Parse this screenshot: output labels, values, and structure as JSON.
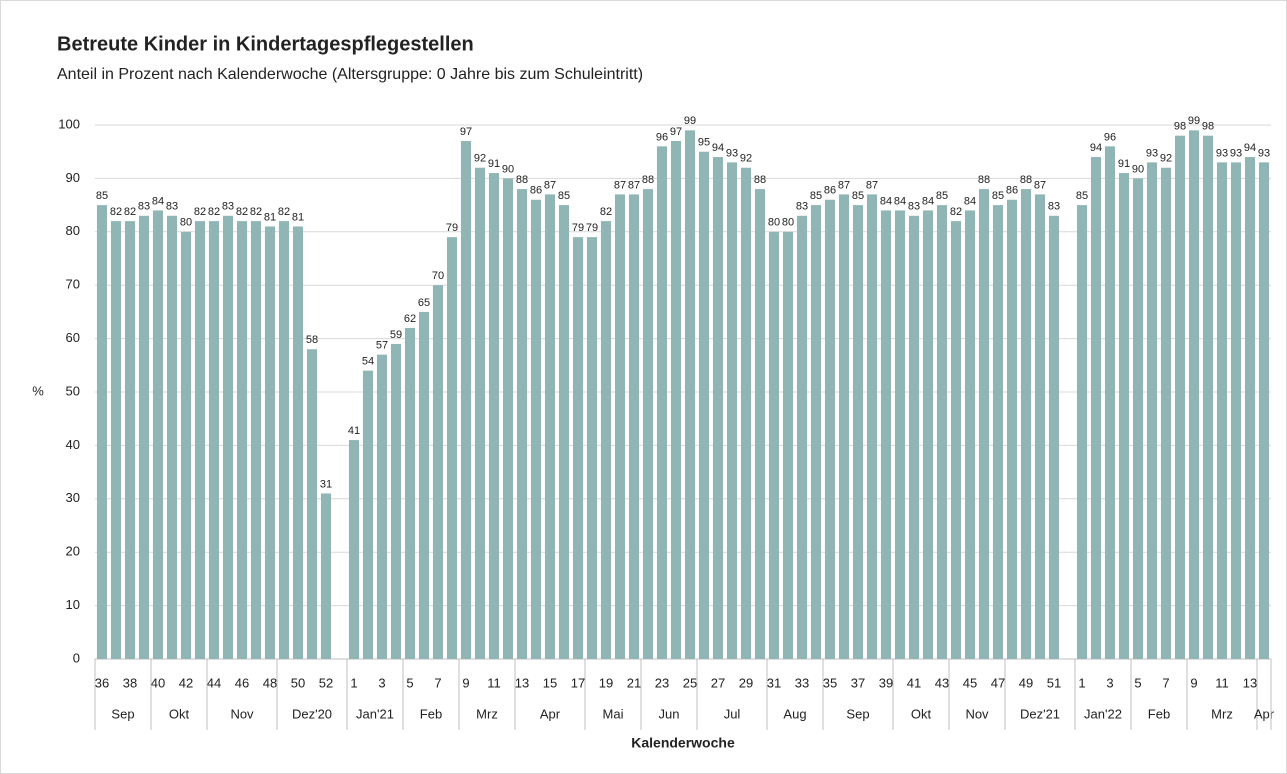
{
  "chart_data": {
    "type": "bar",
    "title": "Betreute Kinder in Kindertagespflegestellen",
    "subtitle": "Anteil in Prozent nach Kalenderwoche (Altersgruppe: 0 Jahre bis zum Schuleintritt)",
    "ylabel": "%",
    "xlabel": "Kalenderwoche",
    "categories": [
      "36",
      null,
      "38",
      null,
      "40",
      null,
      "42",
      null,
      "44",
      null,
      "46",
      null,
      "48",
      null,
      "50",
      null,
      "52",
      null,
      "1",
      null,
      "3",
      null,
      "5",
      null,
      "7",
      null,
      "9",
      null,
      "11",
      null,
      "13",
      null,
      "15",
      null,
      "17",
      null,
      "19",
      null,
      "21",
      null,
      "23",
      null,
      "25",
      null,
      "27",
      null,
      "29",
      null,
      "31",
      null,
      "33",
      null,
      "35",
      null,
      "37",
      null,
      "39",
      null,
      "41",
      null,
      "43",
      null,
      "45",
      null,
      "47",
      null,
      "49",
      null,
      "51",
      null,
      "1",
      null,
      "3",
      null,
      "5",
      null,
      "7",
      null,
      "9",
      null,
      "11",
      null,
      "13",
      null
    ],
    "groups": [
      {
        "label": "Sep",
        "weeks": 4
      },
      {
        "label": "Okt",
        "weeks": 4
      },
      {
        "label": "Nov",
        "weeks": 5
      },
      {
        "label": "Dez'20",
        "weeks": 5
      },
      {
        "label": "Jan'21",
        "weeks": 4
      },
      {
        "label": "Feb",
        "weeks": 4
      },
      {
        "label": "Mrz",
        "weeks": 4
      },
      {
        "label": "Apr",
        "weeks": 5
      },
      {
        "label": "Mai",
        "weeks": 4
      },
      {
        "label": "Jun",
        "weeks": 4
      },
      {
        "label": "Jul",
        "weeks": 5
      },
      {
        "label": "Aug",
        "weeks": 4
      },
      {
        "label": "Sep",
        "weeks": 5
      },
      {
        "label": "Okt",
        "weeks": 4
      },
      {
        "label": "Nov",
        "weeks": 4
      },
      {
        "label": "Dez'21",
        "weeks": 5
      },
      {
        "label": "Jan'22",
        "weeks": 4
      },
      {
        "label": "Feb",
        "weeks": 4
      },
      {
        "label": "Mrz",
        "weeks": 5
      },
      {
        "label": "Apr",
        "weeks": 1
      }
    ],
    "series": [
      {
        "name": "Anteil",
        "color": "#8fb5b4",
        "values": [
          85,
          82,
          82,
          83,
          84,
          83,
          80,
          82,
          82,
          83,
          82,
          82,
          81,
          82,
          81,
          58,
          31,
          null,
          41,
          54,
          57,
          59,
          62,
          65,
          70,
          79,
          97,
          92,
          91,
          90,
          88,
          86,
          87,
          85,
          79,
          79,
          82,
          87,
          87,
          88,
          96,
          97,
          99,
          95,
          94,
          93,
          92,
          88,
          80,
          80,
          83,
          85,
          86,
          87,
          85,
          87,
          84,
          84,
          83,
          84,
          85,
          82,
          84,
          88,
          85,
          86,
          88,
          87,
          83,
          null,
          85,
          94,
          96,
          91,
          90,
          93,
          92,
          98,
          99,
          98,
          93,
          93,
          94,
          93
        ]
      }
    ],
    "ylim": [
      0,
      100
    ],
    "yticks": [
      0,
      10,
      20,
      30,
      40,
      50,
      60,
      70,
      80,
      90,
      100
    ],
    "grid": true
  }
}
